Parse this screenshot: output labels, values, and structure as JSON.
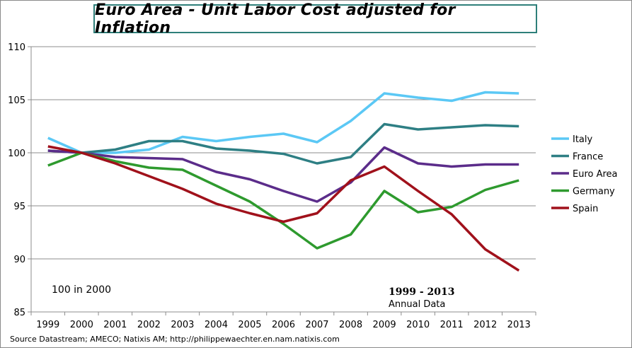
{
  "chart_data": {
    "type": "line",
    "title": "Euro Area - Unit Labor Cost adjusted for Inflation",
    "categories": [
      "1999",
      "2000",
      "2001",
      "2002",
      "2003",
      "2004",
      "2005",
      "2006",
      "2007",
      "2008",
      "2009",
      "2010",
      "2011",
      "2012",
      "2013"
    ],
    "ylim": [
      85,
      110
    ],
    "yticks": [
      85,
      90,
      95,
      100,
      105,
      110
    ],
    "grid": true,
    "legend_position": "right",
    "series": [
      {
        "name": "Italy",
        "color": "#5bc8f5",
        "values": [
          101.4,
          100.0,
          100.0,
          100.3,
          101.5,
          101.1,
          101.5,
          101.8,
          101.0,
          103.0,
          105.6,
          105.2,
          104.9,
          105.7,
          105.6
        ]
      },
      {
        "name": "France",
        "color": "#2e7f84",
        "values": [
          100.2,
          100.0,
          100.3,
          101.1,
          101.1,
          100.4,
          100.2,
          99.9,
          99.0,
          99.6,
          102.7,
          102.2,
          102.4,
          102.6,
          102.5
        ]
      },
      {
        "name": "Euro Area",
        "color": "#5b2c8a",
        "values": [
          100.2,
          100.0,
          99.6,
          99.5,
          99.4,
          98.2,
          97.5,
          96.4,
          95.4,
          97.2,
          100.5,
          99.0,
          98.7,
          98.9,
          98.9
        ]
      },
      {
        "name": "Germany",
        "color": "#2e9a2e",
        "values": [
          98.8,
          100.0,
          99.2,
          98.6,
          98.4,
          96.9,
          95.4,
          93.3,
          91.0,
          92.3,
          96.4,
          94.4,
          94.9,
          96.5,
          97.4
        ]
      },
      {
        "name": "Spain",
        "color": "#a0111b",
        "values": [
          100.6,
          100.0,
          99.0,
          97.8,
          96.6,
          95.2,
          94.3,
          93.5,
          94.3,
          97.4,
          98.7,
          96.4,
          94.2,
          90.9,
          88.9
        ]
      }
    ]
  },
  "annotations": {
    "base_note": "100 in 2000",
    "period": "1999 - 2013",
    "frequency": "Annual Data"
  },
  "source": "Source Datastream; AMECO; Natixis AM; http://philippewaechter.en.nam.natixis.com"
}
